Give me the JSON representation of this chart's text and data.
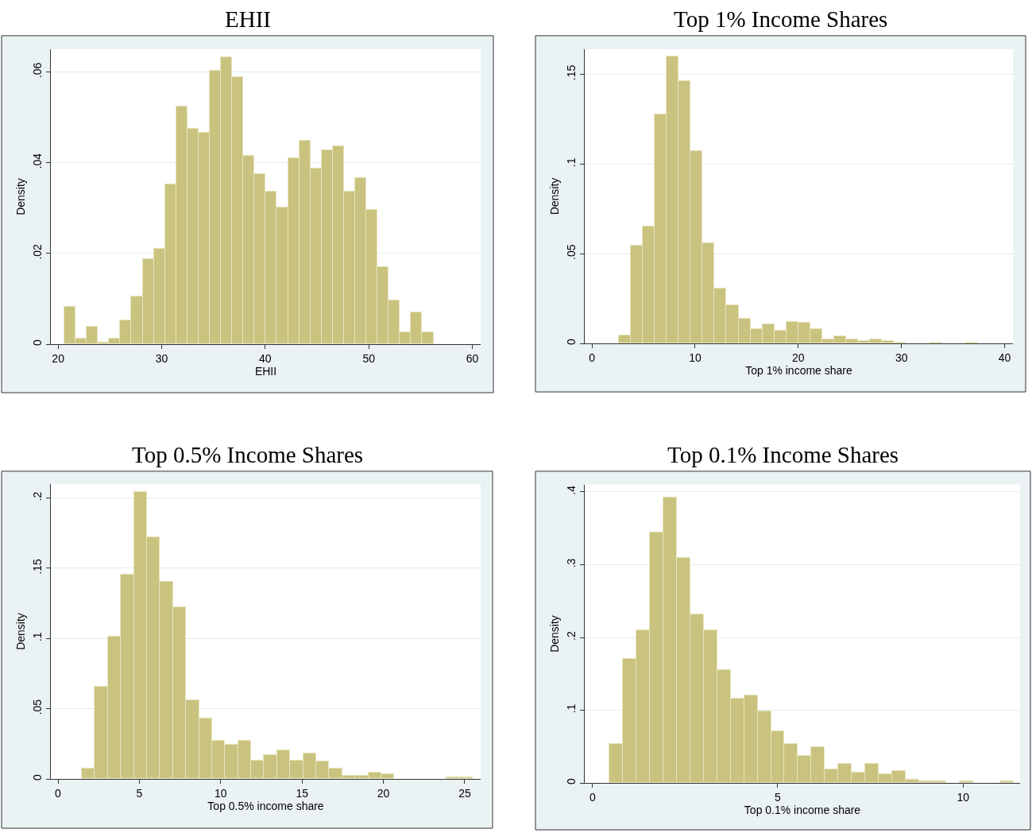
{
  "chart_data": [
    {
      "type": "histogram",
      "title": "EHII",
      "xlabel": "EHII",
      "ylabel": "Density",
      "color": "#c9c37f",
      "grid": "y",
      "bins": [
        20.6,
        21.68,
        22.76,
        23.84,
        24.92,
        26,
        27.08,
        28.16,
        29.24,
        30.32,
        31.4,
        32.48,
        33.56,
        34.64,
        35.72,
        36.8,
        37.88,
        38.96,
        40.04,
        41.12,
        42.2,
        43.28,
        44.36,
        45.44,
        46.52,
        47.6,
        48.68,
        49.76,
        50.84,
        51.92,
        53,
        54.08,
        55.16,
        56.24
      ],
      "values": [
        0.0083,
        0.0013,
        0.0039,
        0.0004,
        0.0013,
        0.0053,
        0.0105,
        0.0187,
        0.021,
        0.0353,
        0.0524,
        0.0475,
        0.0467,
        0.0603,
        0.0633,
        0.0589,
        0.0415,
        0.0375,
        0.0336,
        0.0301,
        0.041,
        0.0449,
        0.0388,
        0.0428,
        0.0437,
        0.0336,
        0.0367,
        0.0297,
        0.017,
        0.0096,
        0.0026,
        0.007,
        0.0026
      ],
      "xlim": [
        19.3,
        60.8
      ],
      "xticks": [
        20,
        30,
        40,
        50,
        60
      ],
      "ylim": [
        0,
        0.065
      ],
      "yticks": [
        0,
        {
          "value": 0.02,
          "label": ".02"
        },
        {
          "value": 0.04,
          "label": ".04"
        },
        {
          "value": 0.06,
          "label": ".06"
        }
      ]
    },
    {
      "type": "histogram",
      "title": "Top 1% Income Shares",
      "xlabel": "Top 1% income share",
      "ylabel": "Density",
      "color": "#c9c37f",
      "grid": "y",
      "bins": [
        2.6,
        3.76,
        4.92,
        6.08,
        7.24,
        8.4,
        9.56,
        10.72,
        11.88,
        13.04,
        14.2,
        15.36,
        16.52,
        17.68,
        18.84,
        20,
        21.16,
        22.32,
        23.48,
        24.64,
        25.8,
        26.96,
        28.12,
        29.28,
        30.44,
        31.6,
        32.76,
        33.92,
        35.08,
        36.24,
        37.4
      ],
      "values": [
        0.0046,
        0.0544,
        0.0654,
        0.1278,
        0.1599,
        0.1464,
        0.1074,
        0.0561,
        0.0308,
        0.0216,
        0.014,
        0.0082,
        0.0108,
        0.0074,
        0.0123,
        0.0116,
        0.0082,
        0.0023,
        0.0039,
        0.0023,
        0.0014,
        0.0023,
        0.0014,
        0.0006,
        0,
        0,
        0.0006,
        0,
        0,
        0.0006
      ],
      "xlim": [
        -0.7,
        40.8
      ],
      "xticks": [
        0,
        10,
        20,
        30,
        40
      ],
      "ylim": [
        0,
        0.164
      ],
      "yticks": [
        0,
        {
          "value": 0.05,
          "label": ".05"
        },
        {
          "value": 0.1,
          "label": ".1"
        },
        {
          "value": 0.15,
          "label": ".15"
        }
      ]
    },
    {
      "type": "histogram",
      "title": "Top 0.5% Income Shares",
      "xlabel": "Top 0.5% income share",
      "ylabel": "Density",
      "color": "#c9c37f",
      "grid": "y",
      "bins": [
        1.47,
        2.27,
        3.07,
        3.87,
        4.67,
        5.47,
        6.27,
        7.07,
        7.87,
        8.67,
        9.47,
        10.27,
        11.07,
        11.87,
        12.67,
        13.47,
        14.27,
        15.07,
        15.87,
        16.67,
        17.47,
        18.27,
        19.07,
        19.87,
        20.67,
        21.47,
        22.27,
        23.07,
        23.87,
        24.67,
        25.47
      ],
      "values": [
        0.0075,
        0.066,
        0.1014,
        0.1453,
        0.2042,
        0.1723,
        0.1405,
        0.1221,
        0.0563,
        0.0429,
        0.0271,
        0.0245,
        0.0271,
        0.0134,
        0.0172,
        0.0208,
        0.0134,
        0.0184,
        0.0125,
        0.0075,
        0.0026,
        0.0026,
        0.0049,
        0.0038,
        0,
        0,
        0,
        0,
        0.0014,
        0.0014
      ],
      "xlim": [
        -0.44,
        25.98
      ],
      "xticks": [
        0,
        5,
        10,
        15,
        20,
        25
      ],
      "ylim": [
        0,
        0.21
      ],
      "yticks": [
        0,
        {
          "value": 0.05,
          "label": ".05"
        },
        {
          "value": 0.1,
          "label": ".1"
        },
        {
          "value": 0.15,
          "label": ".15"
        },
        {
          "value": 0.2,
          "label": ".2"
        }
      ]
    },
    {
      "type": "histogram",
      "title": "Top 0.1% Income Shares",
      "xlabel": "Top 0.1% income share",
      "ylabel": "Density",
      "color": "#c9c37f",
      "grid": "y",
      "bins": [
        0.45,
        0.814,
        1.178,
        1.542,
        1.906,
        2.27,
        2.634,
        2.998,
        3.362,
        3.726,
        4.09,
        4.454,
        4.818,
        5.182,
        5.546,
        5.91,
        6.274,
        6.638,
        7.002,
        7.366,
        7.73,
        8.094,
        8.458,
        8.822,
        9.186,
        9.55,
        9.914,
        10.278,
        10.642,
        11.006,
        11.37
      ],
      "values": [
        0.054,
        0.171,
        0.21,
        0.344,
        0.393,
        0.309,
        0.232,
        0.21,
        0.155,
        0.116,
        0.121,
        0.099,
        0.071,
        0.054,
        0.037,
        0.049,
        0.019,
        0.027,
        0.014,
        0.027,
        0.012,
        0.017,
        0.005,
        0.002,
        0.002,
        0,
        0.002,
        0,
        0,
        0.002
      ],
      "xlim": [
        -0.21,
        11.54
      ],
      "xticks": [
        0,
        5,
        10
      ],
      "ylim": [
        0,
        0.41
      ],
      "yticks": [
        0,
        {
          "value": 0.1,
          "label": ".1"
        },
        {
          "value": 0.2,
          "label": ".2"
        },
        {
          "value": 0.3,
          "label": ".3"
        },
        {
          "value": 0.4,
          "label": ".4"
        }
      ]
    }
  ]
}
